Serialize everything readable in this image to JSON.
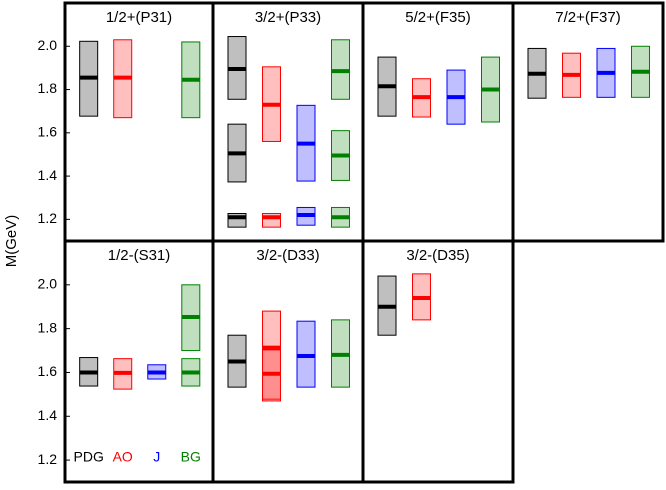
{
  "chart_data": [
    {
      "type": "range",
      "title": "1/2+(P31)",
      "ylabel": "M(GeV)",
      "ylim": [
        1.1,
        2.2
      ],
      "yticks": [
        1.2,
        1.4,
        1.6,
        1.8,
        {
          "value": 2,
          "label": "2.0"
        }
      ],
      "series": [
        {
          "color": "#000000",
          "low": [
            1.677
          ],
          "mid": [
            1.855
          ],
          "high": [
            2.023
          ]
        },
        {
          "color": "#ff0000",
          "low": [
            1.67
          ],
          "mid": [
            1.855
          ],
          "high": [
            2.03
          ]
        },
        {
          "color": "#0000ff",
          "low": [
            null
          ],
          "mid": [
            null
          ],
          "high": [
            null
          ]
        },
        {
          "color": "#008000",
          "low": [
            1.67
          ],
          "mid": [
            1.845
          ],
          "high": [
            2.02
          ]
        }
      ]
    },
    {
      "type": "range",
      "title": "3/2+(P33)",
      "ylim": [
        1.1,
        2.2
      ],
      "series": [
        {
          "color": "#000000",
          "low": [
            1.755,
            1.373,
            1.164
          ],
          "mid": [
            1.895,
            1.505,
            1.21
          ],
          "high": [
            2.045,
            1.64,
            1.227
          ]
        },
        {
          "color": "#ff0000",
          "low": [
            1.56,
            null,
            1.164
          ],
          "mid": [
            1.73,
            null,
            1.21
          ],
          "high": [
            1.905,
            null,
            1.227
          ]
        },
        {
          "color": "#0000ff",
          "low": [
            null,
            1.377,
            1.173
          ],
          "mid": [
            null,
            1.55,
            1.22
          ],
          "high": [
            null,
            1.727,
            1.255
          ]
        },
        {
          "color": "#008000",
          "low": [
            1.755,
            1.38,
            1.164
          ],
          "mid": [
            1.885,
            1.495,
            1.21
          ],
          "high": [
            2.03,
            1.61,
            1.255
          ]
        }
      ]
    },
    {
      "type": "range",
      "title": "5/2+(F35)",
      "ylim": [
        1.1,
        2.2
      ],
      "series": [
        {
          "color": "#000000",
          "low": [
            1.677
          ],
          "mid": [
            1.815
          ],
          "high": [
            1.95
          ]
        },
        {
          "color": "#ff0000",
          "low": [
            1.673
          ],
          "mid": [
            1.765
          ],
          "high": [
            1.85
          ]
        },
        {
          "color": "#0000ff",
          "low": [
            1.64
          ],
          "mid": [
            1.765
          ],
          "high": [
            1.89
          ]
        },
        {
          "color": "#008000",
          "low": [
            1.65
          ],
          "mid": [
            1.8
          ],
          "high": [
            1.95
          ]
        }
      ]
    },
    {
      "type": "range",
      "title": "7/2+(F37)",
      "ylim": [
        1.1,
        2.2
      ],
      "series": [
        {
          "color": "#000000",
          "low": [
            1.76
          ],
          "mid": [
            1.873
          ],
          "high": [
            1.99
          ]
        },
        {
          "color": "#ff0000",
          "low": [
            1.764
          ],
          "mid": [
            1.868
          ],
          "high": [
            1.968
          ]
        },
        {
          "color": "#0000ff",
          "low": [
            1.764
          ],
          "mid": [
            1.877
          ],
          "high": [
            1.99
          ]
        },
        {
          "color": "#008000",
          "low": [
            1.764
          ],
          "mid": [
            1.882
          ],
          "high": [
            2.0
          ]
        }
      ]
    },
    {
      "type": "range",
      "title": "1/2-(S31)",
      "ylim": [
        1.1,
        2.2
      ],
      "yticks": [
        1.2,
        1.4,
        1.6,
        1.8,
        {
          "value": 2,
          "label": "2.0"
        }
      ],
      "series": [
        {
          "name": "PDG",
          "color": "#000000",
          "low": [
            1.538,
            null
          ],
          "mid": [
            1.6,
            null
          ],
          "high": [
            1.668,
            null
          ]
        },
        {
          "name": "AO",
          "color": "#ff0000",
          "low": [
            1.524,
            null
          ],
          "mid": [
            1.598,
            null
          ],
          "high": [
            1.663,
            null
          ]
        },
        {
          "name": "J",
          "color": "#0000ff",
          "low": [
            1.57,
            null
          ],
          "mid": [
            1.6,
            null
          ],
          "high": [
            1.635,
            null
          ]
        },
        {
          "name": "BG",
          "color": "#008000",
          "low": [
            1.538,
            1.7
          ],
          "mid": [
            1.6,
            1.853
          ],
          "high": [
            1.663,
            2.0
          ]
        }
      ]
    },
    {
      "type": "range",
      "title": "3/2-(D33)",
      "ylim": [
        1.1,
        2.2
      ],
      "series": [
        {
          "color": "#000000",
          "low": [
            1.533,
            null
          ],
          "mid": [
            1.65,
            null
          ],
          "high": [
            1.77,
            null
          ]
        },
        {
          "color": "#ff0000",
          "low": [
            1.478,
            1.47
          ],
          "mid": [
            1.594,
            1.71
          ],
          "high": [
            1.72,
            1.88
          ]
        },
        {
          "color": "#0000ff",
          "low": [
            1.533,
            null
          ],
          "mid": [
            1.675,
            null
          ],
          "high": [
            1.834,
            null
          ]
        },
        {
          "color": "#008000",
          "low": [
            1.533,
            null
          ],
          "mid": [
            1.68,
            null
          ],
          "high": [
            1.84,
            null
          ]
        }
      ]
    },
    {
      "type": "range",
      "title": "3/2-(D35)",
      "ylim": [
        1.1,
        2.2
      ],
      "series": [
        {
          "color": "#000000",
          "low": [
            1.77
          ],
          "mid": [
            1.9
          ],
          "high": [
            2.04
          ]
        },
        {
          "color": "#ff0000",
          "low": [
            1.84
          ],
          "mid": [
            1.94
          ],
          "high": [
            2.05
          ]
        },
        {
          "color": "#0000ff",
          "low": [
            null
          ],
          "mid": [
            null
          ],
          "high": [
            null
          ]
        },
        {
          "color": "#008000",
          "low": [
            null
          ],
          "mid": [
            null
          ],
          "high": [
            null
          ]
        }
      ]
    }
  ]
}
